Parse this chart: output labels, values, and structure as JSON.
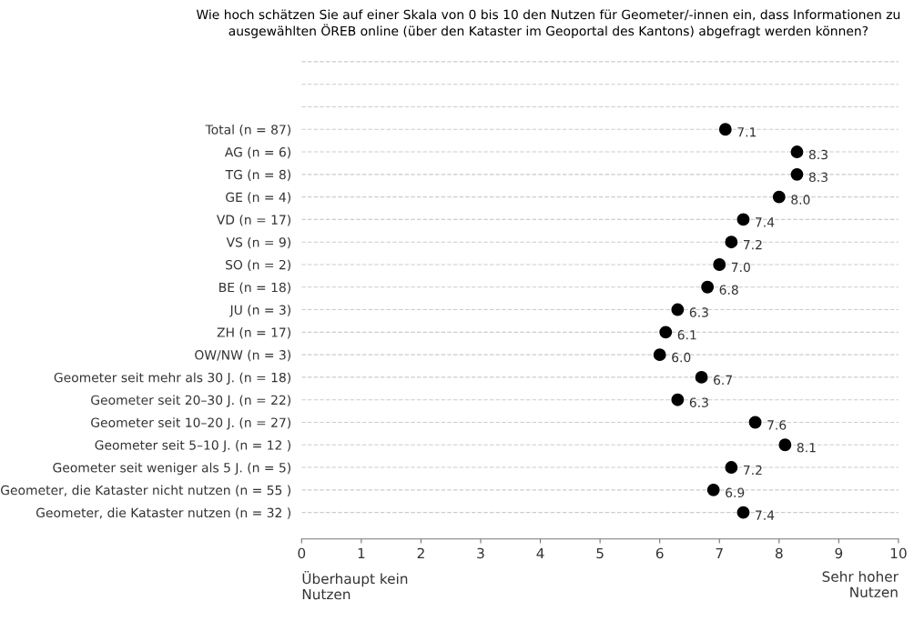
{
  "chart_data": {
    "type": "scatter",
    "orientation": "horizontal",
    "title": "Wie hoch schätzen Sie auf einer Skala von 0 bis 10 den Nutzen für Geometer/-innen ein, dass Informationen zu ausgewählten ÖREB online (über den Kataster im Geoportal des Kantons) abgefragt werden können?",
    "categories": [
      null,
      null,
      null,
      "Total (n = 87)",
      "AG (n = 6)",
      "TG (n = 8)",
      "GE (n = 4)",
      "VD (n = 17)",
      "VS (n = 9)",
      "SO (n = 2)",
      "BE (n = 18)",
      "JU (n = 3)",
      "ZH (n = 17)",
      "OW/NW (n = 3)",
      "Geometer seit mehr als 30 J. (n = 18)",
      "Geometer seit 20–30 J. (n = 22)",
      "Geometer seit 10–20 J. (n = 27)",
      "Geometer seit 5–10 J. (n = 12 )",
      "Geometer seit weniger als 5 J. (n = 5)",
      "Geometer, die Kataster nicht nutzen (n = 55 )",
      "Geometer, die Kataster nutzen (n = 32 )"
    ],
    "values": [
      null,
      null,
      null,
      7.1,
      8.3,
      8.3,
      8.0,
      7.4,
      7.2,
      7.0,
      6.8,
      6.3,
      6.1,
      6.0,
      6.7,
      6.3,
      7.6,
      8.1,
      7.2,
      6.9,
      7.4
    ],
    "value_labels": [
      null,
      null,
      null,
      "7.1",
      "8.3",
      "8.3",
      "8.0",
      "7.4",
      "7.2",
      "7.0",
      "6.8",
      "6.3",
      "6.1",
      "6.0",
      "6.7",
      "6.3",
      "7.6",
      "8.1",
      "7.2",
      "6.9",
      "7.4"
    ],
    "color": "#000000",
    "marker": "circle",
    "xlim": [
      0,
      10
    ],
    "xticks": [
      0,
      1,
      2,
      3,
      4,
      5,
      6,
      7,
      8,
      9,
      10
    ],
    "grid": "y",
    "annotations": [
      "Überhaupt kein\nNutzen",
      "Sehr hoher\nNutzen"
    ]
  }
}
